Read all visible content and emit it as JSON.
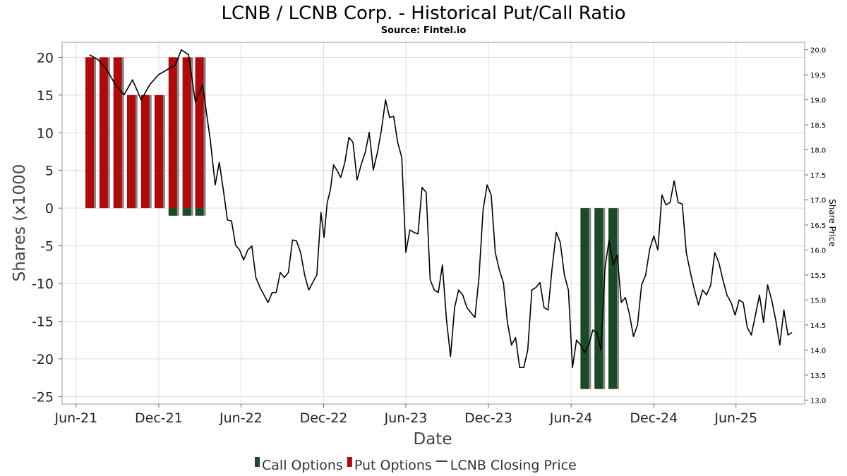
{
  "chart_data": {
    "type": "bar+line",
    "title": "LCNB / LCNB Corp. - Historical Put/Call Ratio",
    "subtitle": "Source: Fintel.io",
    "xlabel": "Date",
    "ylabel": "Shares (x1000",
    "y2label": "Share Price",
    "ylim": [
      -26,
      22
    ],
    "y2lim": [
      12.92,
      20.15
    ],
    "xlim": [
      "2021-05-01",
      "2025-10-31"
    ],
    "grid": true,
    "yticks": [
      -25,
      -20,
      -15,
      -10,
      -5,
      0,
      5,
      10,
      15,
      20
    ],
    "y2ticks": [
      13.0,
      13.5,
      14.0,
      14.5,
      15.0,
      15.5,
      16.0,
      16.5,
      17.0,
      17.5,
      18.0,
      18.5,
      19.0,
      19.5,
      20.0
    ],
    "xticks": [
      {
        "label": "Jun-21",
        "date": "2021-06-01"
      },
      {
        "label": "Dec-21",
        "date": "2021-12-01"
      },
      {
        "label": "Jun-22",
        "date": "2022-06-01"
      },
      {
        "label": "Dec-22",
        "date": "2022-12-01"
      },
      {
        "label": "Jun-23",
        "date": "2023-06-01"
      },
      {
        "label": "Dec-23",
        "date": "2023-12-01"
      },
      {
        "label": "Jun-24",
        "date": "2024-06-01"
      },
      {
        "label": "Dec-24",
        "date": "2024-12-01"
      },
      {
        "label": "Jun-25",
        "date": "2025-06-01"
      }
    ],
    "legend": {
      "placement": "bottom",
      "entries": [
        {
          "name": "Call Options",
          "color": "#1a4a28",
          "kind": "bar"
        },
        {
          "name": "Put Options",
          "color": "#b00a0a",
          "kind": "bar"
        },
        {
          "name": "LCNB Closing Price",
          "color": "#000000",
          "kind": "line"
        }
      ]
    },
    "colors": {
      "call": "#1a4a28",
      "put": "#b00a0a",
      "bar_shadow": "#888888",
      "price": "#000000",
      "grid": "#dddddd",
      "frame": "#999999"
    },
    "bars": [
      {
        "date": "2021-07-01",
        "put": 20,
        "call": 0
      },
      {
        "date": "2021-08-01",
        "put": 20,
        "call": 0
      },
      {
        "date": "2021-09-01",
        "put": 20,
        "call": 0
      },
      {
        "date": "2021-10-01",
        "put": 15,
        "call": 0
      },
      {
        "date": "2021-11-01",
        "put": 15,
        "call": 0
      },
      {
        "date": "2021-12-01",
        "put": 15,
        "call": 0
      },
      {
        "date": "2022-01-01",
        "put": 20,
        "call": -1
      },
      {
        "date": "2022-02-01",
        "put": 20,
        "call": -1
      },
      {
        "date": "2022-03-01",
        "put": 20,
        "call": -1
      },
      {
        "date": "2024-07-01",
        "put": 0,
        "call": -24
      },
      {
        "date": "2024-08-01",
        "put": 0,
        "call": -24
      },
      {
        "date": "2024-09-01",
        "put": 0,
        "call": -24
      }
    ],
    "price": [
      [
        "2021-07-01",
        19.9
      ],
      [
        "2021-07-20",
        19.8
      ],
      [
        "2021-08-08",
        19.6
      ],
      [
        "2021-08-27",
        19.3
      ],
      [
        "2021-09-15",
        19.1
      ],
      [
        "2021-10-04",
        19.4
      ],
      [
        "2021-10-23",
        19.0
      ],
      [
        "2021-11-11",
        19.3
      ],
      [
        "2021-11-30",
        19.5
      ],
      [
        "2021-12-19",
        19.6
      ],
      [
        "2022-01-07",
        19.7
      ],
      [
        "2022-01-20",
        20.0
      ],
      [
        "2022-02-05",
        19.9
      ],
      [
        "2022-02-20",
        18.95
      ],
      [
        "2022-03-08",
        19.3
      ],
      [
        "2022-03-25",
        18.2
      ],
      [
        "2022-04-05",
        17.3
      ],
      [
        "2022-04-14",
        17.75
      ],
      [
        "2022-04-23",
        17.2
      ],
      [
        "2022-05-02",
        16.6
      ],
      [
        "2022-05-11",
        16.58
      ],
      [
        "2022-05-20",
        16.1
      ],
      [
        "2022-05-29",
        16.0
      ],
      [
        "2022-06-07",
        15.8
      ],
      [
        "2022-06-16",
        16.0
      ],
      [
        "2022-06-25",
        16.08
      ],
      [
        "2022-07-04",
        15.45
      ],
      [
        "2022-07-13",
        15.25
      ],
      [
        "2022-07-22",
        15.1
      ],
      [
        "2022-07-31",
        14.95
      ],
      [
        "2022-08-09",
        15.15
      ],
      [
        "2022-08-18",
        15.15
      ],
      [
        "2022-08-27",
        15.55
      ],
      [
        "2022-09-05",
        15.45
      ],
      [
        "2022-09-14",
        15.55
      ],
      [
        "2022-09-23",
        16.2
      ],
      [
        "2022-10-02",
        16.18
      ],
      [
        "2022-10-11",
        15.95
      ],
      [
        "2022-10-20",
        15.5
      ],
      [
        "2022-10-29",
        15.2
      ],
      [
        "2022-11-07",
        15.35
      ],
      [
        "2022-11-16",
        15.5
      ],
      [
        "2022-11-25",
        16.75
      ],
      [
        "2022-12-02",
        16.25
      ],
      [
        "2022-12-09",
        16.95
      ],
      [
        "2022-12-16",
        17.2
      ],
      [
        "2022-12-23",
        17.7
      ],
      [
        "2022-12-30",
        17.6
      ],
      [
        "2023-01-08",
        17.45
      ],
      [
        "2023-01-17",
        17.75
      ],
      [
        "2023-01-26",
        18.25
      ],
      [
        "2023-02-04",
        18.15
      ],
      [
        "2023-02-13",
        17.4
      ],
      [
        "2023-02-22",
        17.7
      ],
      [
        "2023-03-03",
        17.95
      ],
      [
        "2023-03-12",
        18.35
      ],
      [
        "2023-03-21",
        17.6
      ],
      [
        "2023-03-30",
        17.95
      ],
      [
        "2023-04-08",
        18.4
      ],
      [
        "2023-04-17",
        19.0
      ],
      [
        "2023-04-26",
        18.65
      ],
      [
        "2023-05-05",
        18.67
      ],
      [
        "2023-05-14",
        18.15
      ],
      [
        "2023-05-23",
        17.85
      ],
      [
        "2023-06-01",
        15.95
      ],
      [
        "2023-06-10",
        16.4
      ],
      [
        "2023-06-19",
        16.35
      ],
      [
        "2023-06-28",
        16.32
      ],
      [
        "2023-07-07",
        17.25
      ],
      [
        "2023-07-16",
        17.15
      ],
      [
        "2023-07-25",
        15.4
      ],
      [
        "2023-08-03",
        15.2
      ],
      [
        "2023-08-12",
        15.15
      ],
      [
        "2023-08-21",
        15.7
      ],
      [
        "2023-08-30",
        14.6
      ],
      [
        "2023-09-08",
        13.87
      ],
      [
        "2023-09-17",
        14.85
      ],
      [
        "2023-09-26",
        15.2
      ],
      [
        "2023-10-05",
        15.1
      ],
      [
        "2023-10-14",
        14.85
      ],
      [
        "2023-10-23",
        14.75
      ],
      [
        "2023-11-01",
        14.65
      ],
      [
        "2023-11-10",
        15.45
      ],
      [
        "2023-11-19",
        16.8
      ],
      [
        "2023-11-28",
        17.3
      ],
      [
        "2023-12-07",
        17.1
      ],
      [
        "2023-12-16",
        15.95
      ],
      [
        "2023-12-25",
        15.6
      ],
      [
        "2024-01-03",
        15.35
      ],
      [
        "2024-01-12",
        14.55
      ],
      [
        "2024-01-21",
        14.1
      ],
      [
        "2024-01-30",
        14.25
      ],
      [
        "2024-02-08",
        13.65
      ],
      [
        "2024-02-17",
        13.65
      ],
      [
        "2024-02-26",
        14.0
      ],
      [
        "2024-03-06",
        15.2
      ],
      [
        "2024-03-15",
        15.25
      ],
      [
        "2024-03-24",
        15.35
      ],
      [
        "2024-04-02",
        14.85
      ],
      [
        "2024-04-11",
        14.8
      ],
      [
        "2024-04-20",
        15.65
      ],
      [
        "2024-04-29",
        16.35
      ],
      [
        "2024-05-08",
        16.15
      ],
      [
        "2024-05-17",
        15.5
      ],
      [
        "2024-05-26",
        15.2
      ],
      [
        "2024-06-04",
        13.65
      ],
      [
        "2024-06-13",
        14.2
      ],
      [
        "2024-06-22",
        14.1
      ],
      [
        "2024-07-01",
        13.95
      ],
      [
        "2024-07-10",
        14.1
      ],
      [
        "2024-07-19",
        14.4
      ],
      [
        "2024-07-28",
        14.35
      ],
      [
        "2024-08-06",
        14.0
      ],
      [
        "2024-08-15",
        15.65
      ],
      [
        "2024-08-24",
        16.2
      ],
      [
        "2024-09-02",
        15.7
      ],
      [
        "2024-09-11",
        15.9
      ],
      [
        "2024-09-20",
        14.95
      ],
      [
        "2024-09-29",
        15.05
      ],
      [
        "2024-10-08",
        14.72
      ],
      [
        "2024-10-17",
        14.27
      ],
      [
        "2024-10-26",
        14.5
      ],
      [
        "2024-11-04",
        15.3
      ],
      [
        "2024-11-13",
        15.5
      ],
      [
        "2024-11-22",
        16.02
      ],
      [
        "2024-12-01",
        16.28
      ],
      [
        "2024-12-10",
        16.0
      ],
      [
        "2024-12-19",
        17.1
      ],
      [
        "2024-12-28",
        16.9
      ],
      [
        "2025-01-06",
        16.95
      ],
      [
        "2025-01-15",
        17.38
      ],
      [
        "2025-01-24",
        16.95
      ],
      [
        "2025-02-02",
        16.92
      ],
      [
        "2025-02-11",
        15.95
      ],
      [
        "2025-02-20",
        15.55
      ],
      [
        "2025-03-01",
        15.2
      ],
      [
        "2025-03-10",
        14.9
      ],
      [
        "2025-03-19",
        15.2
      ],
      [
        "2025-03-28",
        15.1
      ],
      [
        "2025-04-06",
        15.3
      ],
      [
        "2025-04-15",
        15.95
      ],
      [
        "2025-04-24",
        15.75
      ],
      [
        "2025-05-03",
        15.4
      ],
      [
        "2025-05-12",
        15.1
      ],
      [
        "2025-05-21",
        14.95
      ],
      [
        "2025-05-30",
        14.7
      ],
      [
        "2025-06-08",
        15.0
      ],
      [
        "2025-06-17",
        14.95
      ],
      [
        "2025-06-26",
        14.45
      ],
      [
        "2025-07-05",
        14.3
      ],
      [
        "2025-07-14",
        14.7
      ],
      [
        "2025-07-23",
        15.1
      ],
      [
        "2025-08-01",
        14.55
      ],
      [
        "2025-08-10",
        15.3
      ],
      [
        "2025-08-19",
        15.0
      ],
      [
        "2025-08-28",
        14.6
      ],
      [
        "2025-09-06",
        14.1
      ],
      [
        "2025-09-15",
        14.8
      ],
      [
        "2025-09-24",
        14.3
      ],
      [
        "2025-10-03",
        14.35
      ]
    ]
  }
}
